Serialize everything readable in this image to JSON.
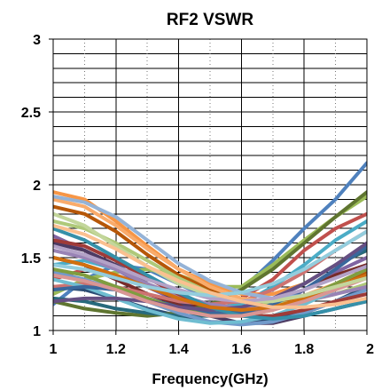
{
  "chart_data": {
    "type": "line",
    "title": "RF2 VSWR",
    "xlabel": "Frequency(GHz)",
    "ylabel": "",
    "xlim": [
      1,
      2
    ],
    "ylim": [
      1,
      3
    ],
    "xticks": [
      "1",
      "1.2",
      "1.4",
      "1.6",
      "1.8",
      "2"
    ],
    "yticks": [
      "1",
      "1.5",
      "2",
      "2.5",
      "3"
    ],
    "grid": true,
    "legend": "none",
    "colors": [
      "#4f81bd",
      "#c0504d",
      "#9bbb59",
      "#8064a2",
      "#4bacc6",
      "#f79646",
      "#2c4d75",
      "#772c2a",
      "#5f7530",
      "#4d3b62",
      "#276a7c",
      "#b65708",
      "#729aca",
      "#cd7371",
      "#afc97a",
      "#9983b5",
      "#6fbdd1",
      "#f9ab6b",
      "#3a679c",
      "#9f3b38",
      "#7f9d40",
      "#664f83",
      "#3590a9",
      "#d17010",
      "#95b3d7",
      "#d99694",
      "#c3d69b",
      "#b3a2c7",
      "#93cddd",
      "#fac090"
    ],
    "x": [
      1.0,
      1.1,
      1.2,
      1.3,
      1.4,
      1.5,
      1.6,
      1.7,
      1.8,
      1.9,
      2.0
    ],
    "series": [
      {
        "values": [
          1.18,
          1.35,
          1.45,
          1.42,
          1.32,
          1.22,
          1.28,
          1.48,
          1.7,
          1.9,
          2.15
        ]
      },
      {
        "values": [
          1.35,
          1.42,
          1.38,
          1.3,
          1.22,
          1.18,
          1.22,
          1.35,
          1.55,
          1.7,
          1.8
        ]
      },
      {
        "values": [
          1.25,
          1.35,
          1.4,
          1.42,
          1.38,
          1.3,
          1.3,
          1.45,
          1.62,
          1.78,
          1.92
        ]
      },
      {
        "values": [
          1.65,
          1.55,
          1.42,
          1.3,
          1.2,
          1.12,
          1.1,
          1.15,
          1.28,
          1.4,
          1.5
        ]
      },
      {
        "values": [
          1.45,
          1.48,
          1.42,
          1.32,
          1.22,
          1.15,
          1.18,
          1.3,
          1.45,
          1.62,
          1.75
        ]
      },
      {
        "values": [
          1.95,
          1.9,
          1.75,
          1.58,
          1.42,
          1.32,
          1.25,
          1.25,
          1.32,
          1.45,
          1.55
        ]
      },
      {
        "values": [
          1.3,
          1.28,
          1.22,
          1.15,
          1.1,
          1.06,
          1.05,
          1.08,
          1.12,
          1.2,
          1.3
        ]
      },
      {
        "values": [
          1.5,
          1.45,
          1.35,
          1.25,
          1.18,
          1.15,
          1.15,
          1.2,
          1.28,
          1.38,
          1.45
        ]
      },
      {
        "values": [
          1.2,
          1.15,
          1.12,
          1.1,
          1.12,
          1.18,
          1.28,
          1.42,
          1.6,
          1.78,
          1.95
        ]
      },
      {
        "values": [
          1.6,
          1.55,
          1.45,
          1.32,
          1.2,
          1.1,
          1.05,
          1.05,
          1.1,
          1.15,
          1.2
        ]
      },
      {
        "values": [
          1.22,
          1.2,
          1.15,
          1.12,
          1.1,
          1.1,
          1.15,
          1.22,
          1.32,
          1.45,
          1.55
        ]
      },
      {
        "values": [
          1.85,
          1.8,
          1.68,
          1.52,
          1.38,
          1.28,
          1.2,
          1.18,
          1.22,
          1.3,
          1.4
        ]
      },
      {
        "values": [
          1.4,
          1.35,
          1.28,
          1.2,
          1.12,
          1.06,
          1.04,
          1.06,
          1.12,
          1.2,
          1.28
        ]
      },
      {
        "values": [
          1.3,
          1.32,
          1.3,
          1.25,
          1.2,
          1.18,
          1.2,
          1.28,
          1.4,
          1.55,
          1.68
        ]
      },
      {
        "values": [
          1.75,
          1.7,
          1.6,
          1.48,
          1.36,
          1.26,
          1.2,
          1.18,
          1.2,
          1.25,
          1.32
        ]
      },
      {
        "values": [
          1.55,
          1.5,
          1.42,
          1.32,
          1.24,
          1.18,
          1.15,
          1.16,
          1.2,
          1.25,
          1.3
        ]
      },
      {
        "values": [
          1.35,
          1.3,
          1.22,
          1.14,
          1.08,
          1.05,
          1.06,
          1.1,
          1.18,
          1.28,
          1.38
        ]
      },
      {
        "values": [
          1.9,
          1.85,
          1.72,
          1.56,
          1.42,
          1.3,
          1.22,
          1.2,
          1.24,
          1.32,
          1.42
        ]
      },
      {
        "values": [
          1.28,
          1.3,
          1.28,
          1.22,
          1.16,
          1.12,
          1.12,
          1.18,
          1.28,
          1.42,
          1.58
        ]
      },
      {
        "values": [
          1.62,
          1.58,
          1.48,
          1.36,
          1.25,
          1.16,
          1.1,
          1.1,
          1.14,
          1.2,
          1.25
        ]
      },
      {
        "values": [
          1.42,
          1.38,
          1.3,
          1.22,
          1.15,
          1.1,
          1.1,
          1.14,
          1.22,
          1.32,
          1.42
        ]
      },
      {
        "values": [
          1.2,
          1.22,
          1.22,
          1.2,
          1.16,
          1.14,
          1.16,
          1.22,
          1.32,
          1.45,
          1.6
        ]
      },
      {
        "values": [
          1.7,
          1.62,
          1.5,
          1.38,
          1.26,
          1.16,
          1.1,
          1.08,
          1.1,
          1.15,
          1.2
        ]
      },
      {
        "values": [
          1.5,
          1.45,
          1.38,
          1.3,
          1.22,
          1.16,
          1.14,
          1.16,
          1.22,
          1.3,
          1.38
        ]
      },
      {
        "values": [
          1.92,
          1.88,
          1.78,
          1.62,
          1.46,
          1.34,
          1.26,
          1.22,
          1.24,
          1.3,
          1.36
        ]
      },
      {
        "values": [
          1.38,
          1.34,
          1.28,
          1.2,
          1.14,
          1.1,
          1.1,
          1.14,
          1.2,
          1.28,
          1.36
        ]
      },
      {
        "values": [
          1.8,
          1.72,
          1.58,
          1.44,
          1.32,
          1.24,
          1.2,
          1.2,
          1.24,
          1.3,
          1.36
        ]
      },
      {
        "values": [
          1.58,
          1.52,
          1.44,
          1.35,
          1.28,
          1.22,
          1.2,
          1.22,
          1.28,
          1.36,
          1.44
        ]
      },
      {
        "values": [
          1.45,
          1.42,
          1.36,
          1.3,
          1.26,
          1.24,
          1.26,
          1.32,
          1.42,
          1.55,
          1.68
        ]
      },
      {
        "values": [
          1.72,
          1.66,
          1.56,
          1.44,
          1.34,
          1.26,
          1.2,
          1.16,
          1.16,
          1.18,
          1.22
        ]
      }
    ]
  }
}
